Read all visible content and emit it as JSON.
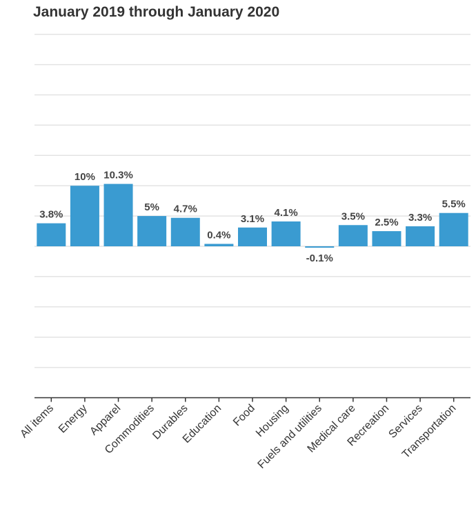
{
  "chart_data": {
    "type": "bar",
    "title": "January 2019 through January 2020",
    "categories": [
      "All items",
      "Energy",
      "Apparel",
      "Commodities",
      "Durables",
      "Education",
      "Food",
      "Housing",
      "Fuels and utilities",
      "Medical care",
      "Recreation",
      "Services",
      "Transportation"
    ],
    "values": [
      3.8,
      10,
      10.3,
      5,
      4.7,
      0.4,
      3.1,
      4.1,
      -0.1,
      3.5,
      2.5,
      3.3,
      5.5
    ],
    "value_labels": [
      "3.8%",
      "10%",
      "10.3%",
      "5%",
      "4.7%",
      "0.4%",
      "3.1%",
      "4.1%",
      "-0.1%",
      "3.5%",
      "2.5%",
      "3.3%",
      "5.5%"
    ],
    "xlabel": "",
    "ylabel": "",
    "ylim": [
      -25,
      35
    ],
    "grid": true,
    "bar_color": "#3a9bd1"
  }
}
